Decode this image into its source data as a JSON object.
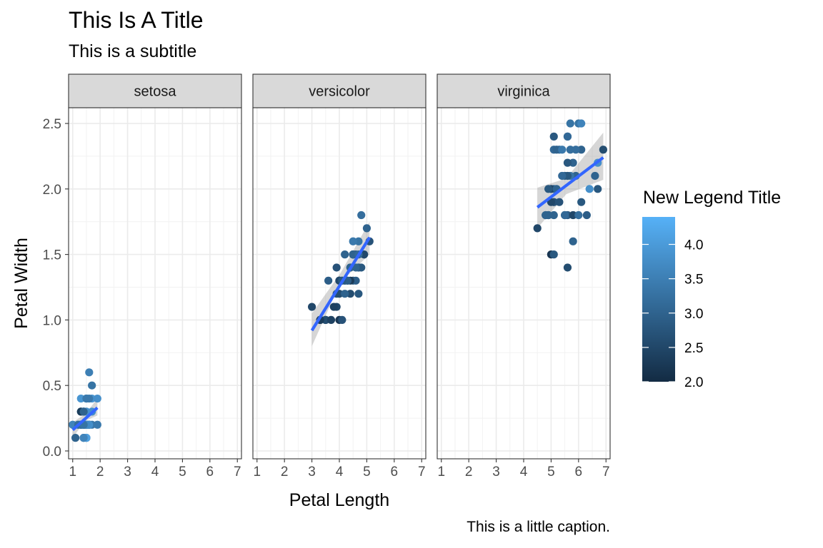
{
  "title": "This Is A Title",
  "subtitle": "This is a subtitle",
  "caption": "This is a little caption.",
  "chart_data": {
    "type": "scatter",
    "xlabel": "Petal Length",
    "ylabel": "Petal Width",
    "xlim": [
      0.85,
      7.15
    ],
    "ylim": [
      -0.06,
      2.62
    ],
    "x_ticks": [
      1,
      2,
      3,
      4,
      5,
      6,
      7
    ],
    "x_tick_labels": [
      "1",
      "2",
      "3",
      "4",
      "5",
      "6",
      "7"
    ],
    "y_ticks": [
      0,
      0.5,
      1,
      1.5,
      2,
      2.5
    ],
    "y_tick_labels": [
      "0.0",
      "0.5",
      "1.0",
      "1.5",
      "2.0",
      "2.5"
    ],
    "grid": true,
    "theme": "bw",
    "legend": {
      "title": "New Legend Title",
      "placement": "right",
      "type": "colorbar",
      "range": [
        2.0,
        4.4
      ],
      "breaks": [
        2.0,
        2.5,
        3.0,
        3.5,
        4.0
      ],
      "break_labels": [
        "2.0",
        "2.5",
        "3.0",
        "3.5",
        "4.0"
      ],
      "low_color": "#132B43",
      "high_color": "#56B1F7"
    },
    "smooth_color": "#3366FF",
    "ribbon_color": "#999999",
    "facets": [
      {
        "name": "setosa",
        "smooth": {
          "x": [
            1.0,
            1.9
          ],
          "y": [
            0.16,
            0.33
          ]
        },
        "ribbon": {
          "x": [
            1.0,
            1.45,
            1.9
          ],
          "lo": [
            0.1,
            0.23,
            0.27
          ],
          "hi": [
            0.22,
            0.28,
            0.4
          ]
        },
        "points": [
          [
            1.4,
            0.2,
            3.5
          ],
          [
            1.4,
            0.2,
            3.0
          ],
          [
            1.3,
            0.2,
            3.2
          ],
          [
            1.5,
            0.2,
            3.1
          ],
          [
            1.4,
            0.2,
            3.6
          ],
          [
            1.7,
            0.4,
            3.9
          ],
          [
            1.4,
            0.3,
            3.4
          ],
          [
            1.5,
            0.2,
            3.4
          ],
          [
            1.4,
            0.2,
            2.9
          ],
          [
            1.5,
            0.1,
            3.1
          ],
          [
            1.5,
            0.2,
            3.7
          ],
          [
            1.6,
            0.2,
            3.4
          ],
          [
            1.4,
            0.1,
            3.0
          ],
          [
            1.1,
            0.1,
            3.0
          ],
          [
            1.2,
            0.2,
            4.0
          ],
          [
            1.5,
            0.4,
            4.4
          ],
          [
            1.3,
            0.4,
            3.9
          ],
          [
            1.4,
            0.3,
            3.5
          ],
          [
            1.7,
            0.3,
            3.8
          ],
          [
            1.5,
            0.3,
            3.8
          ],
          [
            1.7,
            0.2,
            3.4
          ],
          [
            1.5,
            0.4,
            3.7
          ],
          [
            1.0,
            0.2,
            3.6
          ],
          [
            1.7,
            0.5,
            3.3
          ],
          [
            1.9,
            0.2,
            3.4
          ],
          [
            1.6,
            0.2,
            3.0
          ],
          [
            1.6,
            0.4,
            3.4
          ],
          [
            1.5,
            0.2,
            3.5
          ],
          [
            1.4,
            0.2,
            3.4
          ],
          [
            1.6,
            0.2,
            3.2
          ],
          [
            1.6,
            0.2,
            3.1
          ],
          [
            1.5,
            0.4,
            3.4
          ],
          [
            1.5,
            0.1,
            4.1
          ],
          [
            1.4,
            0.2,
            4.2
          ],
          [
            1.5,
            0.2,
            3.1
          ],
          [
            1.2,
            0.2,
            3.2
          ],
          [
            1.3,
            0.2,
            3.5
          ],
          [
            1.4,
            0.1,
            3.6
          ],
          [
            1.3,
            0.2,
            3.0
          ],
          [
            1.5,
            0.2,
            3.4
          ],
          [
            1.3,
            0.3,
            3.5
          ],
          [
            1.3,
            0.3,
            2.3
          ],
          [
            1.3,
            0.2,
            3.2
          ],
          [
            1.6,
            0.6,
            3.5
          ],
          [
            1.9,
            0.4,
            3.8
          ],
          [
            1.4,
            0.3,
            3.0
          ],
          [
            1.6,
            0.2,
            3.8
          ],
          [
            1.4,
            0.2,
            3.2
          ],
          [
            1.5,
            0.2,
            3.7
          ],
          [
            1.4,
            0.2,
            3.3
          ]
        ]
      },
      {
        "name": "versicolor",
        "smooth": {
          "x": [
            3.0,
            5.1
          ],
          "y": [
            0.92,
            1.63
          ]
        },
        "ribbon": {
          "x": [
            3.0,
            4.05,
            5.1
          ],
          "lo": [
            0.8,
            1.29,
            1.5
          ],
          "hi": [
            1.05,
            1.36,
            1.75
          ]
        },
        "points": [
          [
            4.7,
            1.4,
            3.2
          ],
          [
            4.5,
            1.5,
            3.2
          ],
          [
            4.9,
            1.5,
            3.1
          ],
          [
            4.0,
            1.3,
            2.3
          ],
          [
            4.6,
            1.5,
            2.8
          ],
          [
            4.5,
            1.3,
            2.8
          ],
          [
            4.7,
            1.6,
            3.3
          ],
          [
            3.3,
            1.0,
            2.4
          ],
          [
            4.6,
            1.3,
            2.9
          ],
          [
            3.9,
            1.4,
            2.7
          ],
          [
            3.5,
            1.0,
            2.0
          ],
          [
            4.2,
            1.5,
            3.0
          ],
          [
            4.0,
            1.0,
            2.2
          ],
          [
            4.7,
            1.4,
            2.9
          ],
          [
            3.6,
            1.3,
            2.9
          ],
          [
            4.4,
            1.4,
            3.1
          ],
          [
            4.5,
            1.5,
            3.0
          ],
          [
            4.1,
            1.0,
            2.7
          ],
          [
            4.5,
            1.5,
            2.2
          ],
          [
            3.9,
            1.1,
            2.5
          ],
          [
            4.8,
            1.8,
            3.2
          ],
          [
            4.0,
            1.3,
            2.8
          ],
          [
            4.9,
            1.5,
            2.5
          ],
          [
            4.7,
            1.2,
            2.8
          ],
          [
            4.3,
            1.3,
            2.9
          ],
          [
            4.4,
            1.4,
            3.0
          ],
          [
            4.8,
            1.4,
            2.8
          ],
          [
            5.0,
            1.7,
            3.0
          ],
          [
            4.5,
            1.5,
            2.9
          ],
          [
            3.5,
            1.0,
            2.6
          ],
          [
            3.8,
            1.1,
            2.4
          ],
          [
            3.7,
            1.0,
            2.4
          ],
          [
            3.9,
            1.2,
            2.7
          ],
          [
            5.1,
            1.6,
            2.7
          ],
          [
            4.5,
            1.5,
            3.0
          ],
          [
            4.5,
            1.6,
            3.4
          ],
          [
            4.7,
            1.5,
            3.1
          ],
          [
            4.4,
            1.3,
            2.3
          ],
          [
            4.1,
            1.3,
            3.0
          ],
          [
            4.0,
            1.3,
            2.5
          ],
          [
            4.4,
            1.2,
            2.6
          ],
          [
            4.6,
            1.4,
            3.0
          ],
          [
            4.0,
            1.2,
            2.6
          ],
          [
            3.3,
            1.0,
            2.3
          ],
          [
            4.2,
            1.3,
            2.7
          ],
          [
            4.2,
            1.2,
            3.0
          ],
          [
            4.2,
            1.3,
            2.9
          ],
          [
            4.3,
            1.3,
            2.9
          ],
          [
            3.0,
            1.1,
            2.5
          ],
          [
            4.1,
            1.3,
            2.8
          ]
        ]
      },
      {
        "name": "virginica",
        "smooth": {
          "x": [
            4.5,
            6.9
          ],
          "y": [
            1.86,
            2.24
          ]
        },
        "ribbon": {
          "x": [
            4.5,
            5.55,
            6.9
          ],
          "lo": [
            1.7,
            1.96,
            2.07
          ],
          "hi": [
            2.01,
            2.08,
            2.43
          ]
        },
        "points": [
          [
            6.0,
            2.5,
            3.3
          ],
          [
            5.1,
            1.9,
            2.7
          ],
          [
            5.9,
            2.1,
            3.0
          ],
          [
            5.6,
            1.8,
            2.9
          ],
          [
            5.8,
            2.2,
            3.0
          ],
          [
            6.6,
            2.1,
            3.0
          ],
          [
            4.5,
            1.7,
            2.5
          ],
          [
            6.3,
            1.8,
            2.9
          ],
          [
            5.8,
            1.8,
            2.5
          ],
          [
            6.1,
            2.5,
            3.6
          ],
          [
            5.1,
            2.0,
            3.2
          ],
          [
            5.3,
            1.9,
            2.7
          ],
          [
            5.5,
            2.1,
            3.0
          ],
          [
            5.0,
            2.0,
            2.5
          ],
          [
            5.1,
            2.4,
            2.8
          ],
          [
            5.3,
            2.3,
            3.2
          ],
          [
            5.5,
            1.8,
            3.0
          ],
          [
            6.7,
            2.2,
            3.8
          ],
          [
            6.9,
            2.3,
            2.6
          ],
          [
            5.0,
            1.5,
            2.2
          ],
          [
            5.7,
            2.3,
            3.2
          ],
          [
            4.9,
            2.0,
            2.8
          ],
          [
            6.7,
            2.0,
            2.8
          ],
          [
            4.9,
            1.8,
            2.7
          ],
          [
            5.7,
            2.1,
            3.3
          ],
          [
            6.0,
            1.8,
            3.2
          ],
          [
            4.8,
            1.8,
            2.8
          ],
          [
            4.9,
            1.8,
            3.0
          ],
          [
            5.6,
            2.1,
            2.8
          ],
          [
            5.8,
            1.6,
            3.0
          ],
          [
            6.1,
            1.9,
            2.8
          ],
          [
            6.4,
            2.0,
            3.8
          ],
          [
            5.6,
            2.2,
            2.8
          ],
          [
            5.1,
            1.5,
            2.8
          ],
          [
            5.6,
            1.4,
            2.6
          ],
          [
            6.1,
            2.3,
            3.0
          ],
          [
            5.6,
            2.4,
            3.4
          ],
          [
            5.5,
            1.8,
            3.1
          ],
          [
            4.8,
            1.8,
            3.0
          ],
          [
            5.4,
            2.1,
            3.1
          ],
          [
            5.6,
            2.4,
            3.1
          ],
          [
            5.1,
            2.3,
            3.1
          ],
          [
            5.1,
            1.9,
            2.7
          ],
          [
            5.9,
            2.3,
            3.2
          ],
          [
            5.7,
            2.5,
            3.3
          ],
          [
            5.2,
            2.3,
            3.0
          ],
          [
            5.0,
            1.9,
            2.5
          ],
          [
            5.2,
            2.0,
            3.0
          ],
          [
            5.4,
            2.3,
            3.4
          ],
          [
            5.1,
            1.8,
            3.0
          ]
        ]
      }
    ]
  }
}
